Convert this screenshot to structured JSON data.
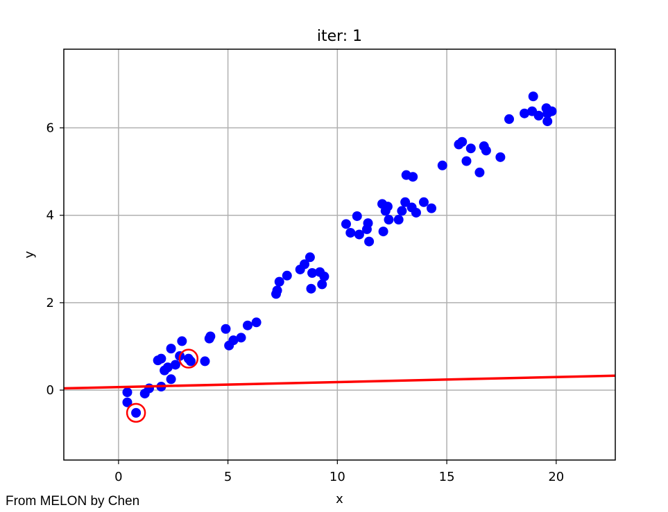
{
  "chart_data": {
    "type": "scatter",
    "title": "iter: 1",
    "xlabel": "x",
    "ylabel": "y",
    "xlim": [
      -2.5,
      22.7
    ],
    "ylim": [
      -1.6,
      7.8
    ],
    "xticks": [
      0,
      5,
      10,
      15,
      20
    ],
    "yticks": [
      0,
      2,
      4,
      6
    ],
    "grid": true,
    "colors": {
      "points": "#0000ff",
      "fit_line": "#ff0000",
      "highlight": "#ff0000",
      "grid": "#b0b0b0"
    },
    "series": [
      {
        "kind": "points",
        "values": [
          [
            0.4,
            -0.05
          ],
          [
            0.4,
            -0.28
          ],
          [
            0.8,
            -0.52
          ],
          [
            1.2,
            -0.08
          ],
          [
            1.4,
            0.04
          ],
          [
            1.8,
            0.68
          ],
          [
            1.95,
            0.72
          ],
          [
            1.95,
            0.08
          ],
          [
            2.1,
            0.45
          ],
          [
            2.25,
            0.52
          ],
          [
            2.4,
            0.95
          ],
          [
            2.4,
            0.25
          ],
          [
            2.6,
            0.58
          ],
          [
            2.8,
            0.78
          ],
          [
            2.9,
            1.12
          ],
          [
            3.2,
            0.72
          ],
          [
            3.3,
            0.66
          ],
          [
            3.95,
            0.66
          ],
          [
            4.15,
            1.18
          ],
          [
            4.2,
            1.23
          ],
          [
            4.9,
            1.4
          ],
          [
            5.05,
            1.02
          ],
          [
            5.25,
            1.14
          ],
          [
            5.6,
            1.2
          ],
          [
            5.9,
            1.48
          ],
          [
            6.3,
            1.55
          ],
          [
            7.2,
            2.2
          ],
          [
            7.25,
            2.28
          ],
          [
            7.35,
            2.48
          ],
          [
            7.7,
            2.62
          ],
          [
            8.3,
            2.76
          ],
          [
            8.5,
            2.88
          ],
          [
            8.75,
            3.04
          ],
          [
            8.8,
            2.32
          ],
          [
            8.85,
            2.68
          ],
          [
            9.2,
            2.7
          ],
          [
            9.3,
            2.42
          ],
          [
            9.4,
            2.6
          ],
          [
            10.4,
            3.8
          ],
          [
            10.6,
            3.6
          ],
          [
            10.9,
            3.98
          ],
          [
            11.0,
            3.56
          ],
          [
            11.35,
            3.68
          ],
          [
            11.4,
            3.82
          ],
          [
            11.45,
            3.4
          ],
          [
            12.05,
            4.26
          ],
          [
            12.1,
            3.63
          ],
          [
            12.2,
            4.1
          ],
          [
            12.3,
            4.2
          ],
          [
            12.35,
            3.9
          ],
          [
            12.8,
            3.9
          ],
          [
            12.95,
            4.1
          ],
          [
            13.1,
            4.3
          ],
          [
            13.15,
            4.92
          ],
          [
            13.4,
            4.18
          ],
          [
            13.45,
            4.88
          ],
          [
            13.6,
            4.06
          ],
          [
            13.95,
            4.3
          ],
          [
            14.3,
            4.16
          ],
          [
            14.8,
            5.14
          ],
          [
            15.55,
            5.62
          ],
          [
            15.7,
            5.68
          ],
          [
            15.9,
            5.24
          ],
          [
            16.1,
            5.53
          ],
          [
            16.5,
            4.98
          ],
          [
            16.7,
            5.58
          ],
          [
            16.8,
            5.48
          ],
          [
            17.45,
            5.33
          ],
          [
            17.85,
            6.2
          ],
          [
            18.55,
            6.33
          ],
          [
            18.9,
            6.38
          ],
          [
            18.95,
            6.72
          ],
          [
            19.2,
            6.28
          ],
          [
            19.55,
            6.45
          ],
          [
            19.6,
            6.15
          ],
          [
            19.6,
            6.33
          ],
          [
            19.8,
            6.38
          ]
        ]
      },
      {
        "kind": "highlighted",
        "values": [
          [
            0.8,
            -0.52
          ],
          [
            3.2,
            0.72
          ]
        ]
      },
      {
        "kind": "fit_line",
        "values": [
          [
            -2.5,
            0.04
          ],
          [
            22.7,
            0.33
          ]
        ]
      }
    ]
  },
  "credit": "From MELON by Chen"
}
